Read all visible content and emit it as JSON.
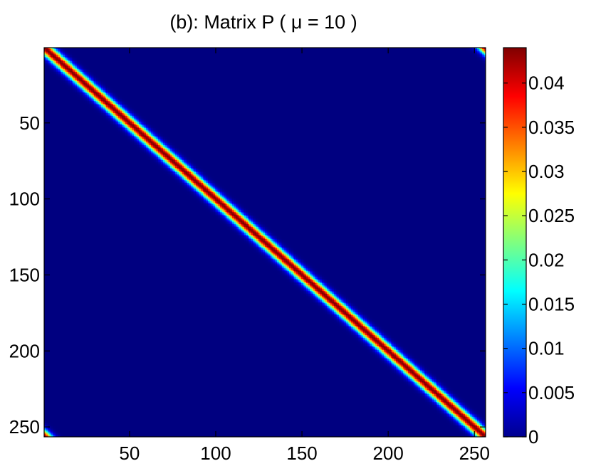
{
  "chart_data": {
    "type": "heatmap",
    "title": "(b): Matrix P ( μ = 10 )",
    "colormap": "jet",
    "matrix": {
      "size": 256,
      "description_of_structure": "banded diagonal with periodic corner wrap",
      "diagonal_peak": 0.044,
      "band_sigma": 3.5,
      "background_value": 0.0
    },
    "x_axis": {
      "range": [
        1,
        256
      ],
      "ticks": [
        50,
        100,
        150,
        200,
        250
      ],
      "tick_labels": [
        "50",
        "100",
        "150",
        "200",
        "250"
      ]
    },
    "y_axis": {
      "range": [
        1,
        256
      ],
      "reversed": true,
      "ticks": [
        50,
        100,
        150,
        200,
        250
      ],
      "tick_labels": [
        "50",
        "100",
        "150",
        "200",
        "250"
      ]
    },
    "colorbar": {
      "range": [
        0,
        0.044
      ],
      "ticks": [
        0,
        0.005,
        0.01,
        0.015,
        0.02,
        0.025,
        0.03,
        0.035,
        0.04
      ],
      "tick_labels": [
        "0",
        "0.005",
        "0.01",
        "0.015",
        "0.02",
        "0.025",
        "0.03",
        "0.035",
        "0.04"
      ]
    }
  }
}
